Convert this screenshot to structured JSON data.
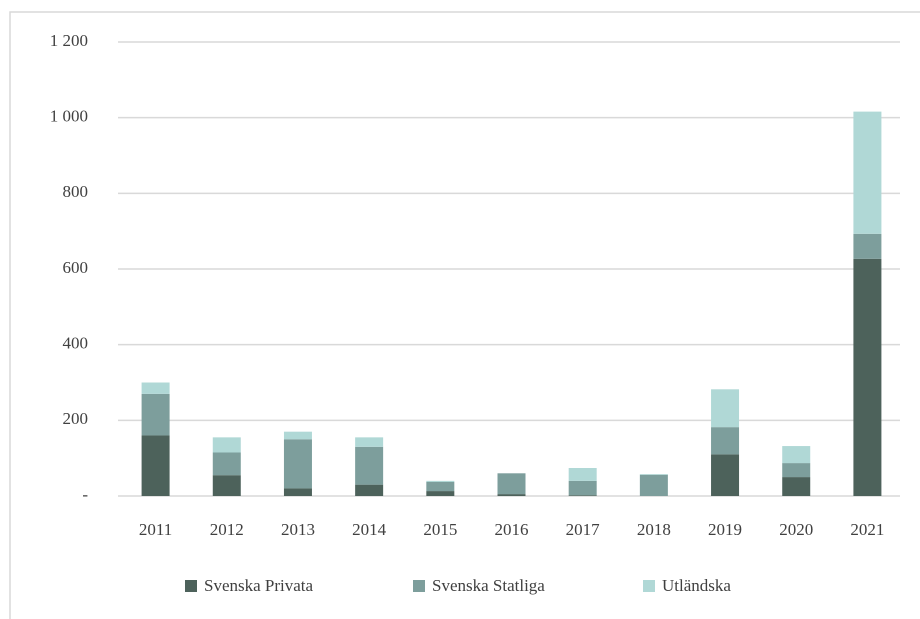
{
  "chart_data": {
    "type": "stacked_bar",
    "categories": [
      "2011",
      "2012",
      "2013",
      "2014",
      "2015",
      "2016",
      "2017",
      "2018",
      "2019",
      "2020",
      "2021"
    ],
    "series": [
      {
        "name": "Svenska Privata",
        "color": "#4d625b",
        "values": [
          160,
          55,
          20,
          30,
          13,
          5,
          2,
          0,
          110,
          50,
          627
        ]
      },
      {
        "name": "Svenska Statliga",
        "color": "#7d9e9c",
        "values": [
          110,
          60,
          130,
          100,
          24,
          55,
          38,
          56,
          72,
          37,
          66
        ]
      },
      {
        "name": "Utländska",
        "color": "#b0d8d6",
        "values": [
          30,
          40,
          20,
          25,
          3,
          0,
          34,
          2,
          100,
          45,
          323
        ]
      }
    ],
    "ylim": [
      0,
      1200
    ],
    "yticks": [
      {
        "value": 0,
        "label": "-"
      },
      200,
      400,
      600,
      800,
      {
        "value": 1000,
        "label": "1 000"
      },
      {
        "value": 1200,
        "label": "1 200"
      }
    ],
    "grid": true,
    "legend": "bottom"
  }
}
